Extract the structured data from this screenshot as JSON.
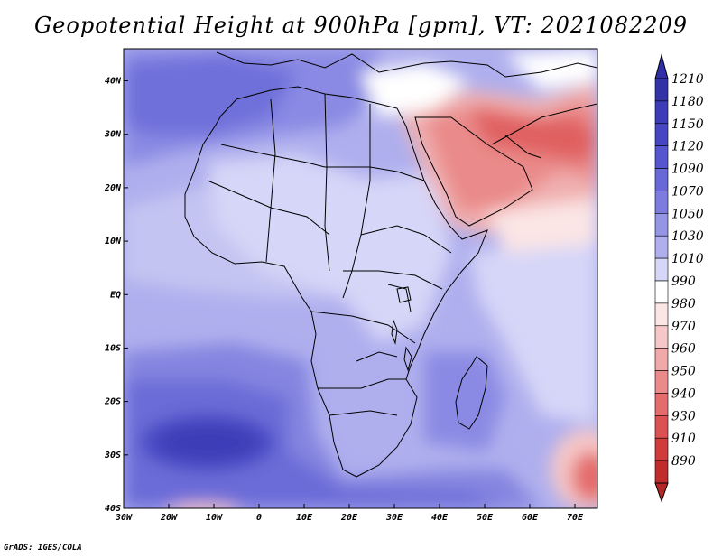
{
  "title": "Geopotential Height at 900hPa [gpm], VT: 2021082209",
  "credit": "GrADS: IGES/COLA",
  "map": {
    "lon_range": [
      -30,
      75
    ],
    "lat_range": [
      -40,
      46
    ],
    "lon_ticks": [
      {
        "value": -30,
        "label": "30W"
      },
      {
        "value": -20,
        "label": "20W"
      },
      {
        "value": -10,
        "label": "10W"
      },
      {
        "value": 0,
        "label": "0"
      },
      {
        "value": 10,
        "label": "10E"
      },
      {
        "value": 20,
        "label": "20E"
      },
      {
        "value": 30,
        "label": "30E"
      },
      {
        "value": 40,
        "label": "40E"
      },
      {
        "value": 50,
        "label": "50E"
      },
      {
        "value": 60,
        "label": "60E"
      },
      {
        "value": 70,
        "label": "70E"
      }
    ],
    "lat_ticks": [
      {
        "value": 40,
        "label": "40N"
      },
      {
        "value": 30,
        "label": "30N"
      },
      {
        "value": 20,
        "label": "20N"
      },
      {
        "value": 10,
        "label": "10N"
      },
      {
        "value": 0,
        "label": "EQ"
      },
      {
        "value": -10,
        "label": "10S"
      },
      {
        "value": -20,
        "label": "20S"
      },
      {
        "value": -30,
        "label": "30S"
      },
      {
        "value": -40,
        "label": "40S"
      }
    ]
  },
  "colorbar": {
    "top_color": "#2e2ea6",
    "bottom_color": "#b52626",
    "levels": [
      {
        "label": "1210",
        "color": "#3333a8"
      },
      {
        "label": "1180",
        "color": "#3c3cb8"
      },
      {
        "label": "1150",
        "color": "#4646c4"
      },
      {
        "label": "1120",
        "color": "#5555d0"
      },
      {
        "label": "1090",
        "color": "#6868d8"
      },
      {
        "label": "1070",
        "color": "#7c7ce0"
      },
      {
        "label": "1050",
        "color": "#9595e6"
      },
      {
        "label": "1030",
        "color": "#afafee"
      },
      {
        "label": "1010",
        "color": "#d6d6f8"
      },
      {
        "label": "990",
        "color": "#ffffff"
      },
      {
        "label": "980",
        "color": "#fbe5e5"
      },
      {
        "label": "970",
        "color": "#f6c7c7"
      },
      {
        "label": "960",
        "color": "#f0a9a9"
      },
      {
        "label": "950",
        "color": "#ea8a8a"
      },
      {
        "label": "940",
        "color": "#e46c6c"
      },
      {
        "label": "930",
        "color": "#dc5252"
      },
      {
        "label": "910",
        "color": "#d03b3b"
      },
      {
        "label": "890",
        "color": "#c02c2c"
      }
    ]
  }
}
